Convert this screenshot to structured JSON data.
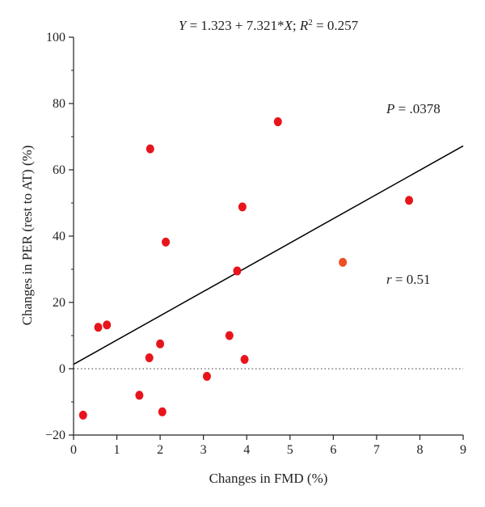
{
  "chart_data": {
    "type": "scatter",
    "title_parts": {
      "y": "Y",
      "eq_mid": " = 1.323 + 7.321*",
      "x": "X",
      "sep": "; ",
      "r": "R",
      "sup": "2",
      "tail": " = 0.257"
    },
    "xlabel": "Changes in FMD (%)",
    "ylabel": "Changes in PER (rest to AT) (%)",
    "xlim": [
      0,
      9
    ],
    "ylim": [
      -20,
      100
    ],
    "x_ticks": [
      "0",
      "1",
      "2",
      "3",
      "4",
      "5",
      "6",
      "7",
      "8",
      "9"
    ],
    "y_ticks": [
      "−20",
      "0",
      "20",
      "40",
      "60",
      "80",
      "100"
    ],
    "grid": false,
    "points": [
      {
        "x": 0.22,
        "y": -14
      },
      {
        "x": 0.57,
        "y": 12.5
      },
      {
        "x": 0.77,
        "y": 13.2
      },
      {
        "x": 1.52,
        "y": -8
      },
      {
        "x": 1.75,
        "y": 3.3
      },
      {
        "x": 1.77,
        "y": 66.3
      },
      {
        "x": 2.0,
        "y": 7.5
      },
      {
        "x": 2.05,
        "y": -13
      },
      {
        "x": 2.13,
        "y": 38.2
      },
      {
        "x": 3.08,
        "y": -2.3
      },
      {
        "x": 3.6,
        "y": 10
      },
      {
        "x": 3.78,
        "y": 29.5
      },
      {
        "x": 3.9,
        "y": 48.8
      },
      {
        "x": 3.95,
        "y": 2.8
      },
      {
        "x": 4.72,
        "y": 74.5
      },
      {
        "x": 6.22,
        "y": 32.1,
        "highlight": true
      },
      {
        "x": 7.75,
        "y": 50.8
      }
    ],
    "regression": {
      "intercept": 1.323,
      "slope": 7.321
    },
    "reference_line_y": 0,
    "annotations": {
      "p_label": "P",
      "p_value": " = .0378",
      "r_label": "r",
      "r_value": " = 0.51"
    },
    "colors": {
      "point": "#e8141c",
      "point_highlight": "#f04e23",
      "line": "#000000",
      "axis": "#222222"
    }
  }
}
